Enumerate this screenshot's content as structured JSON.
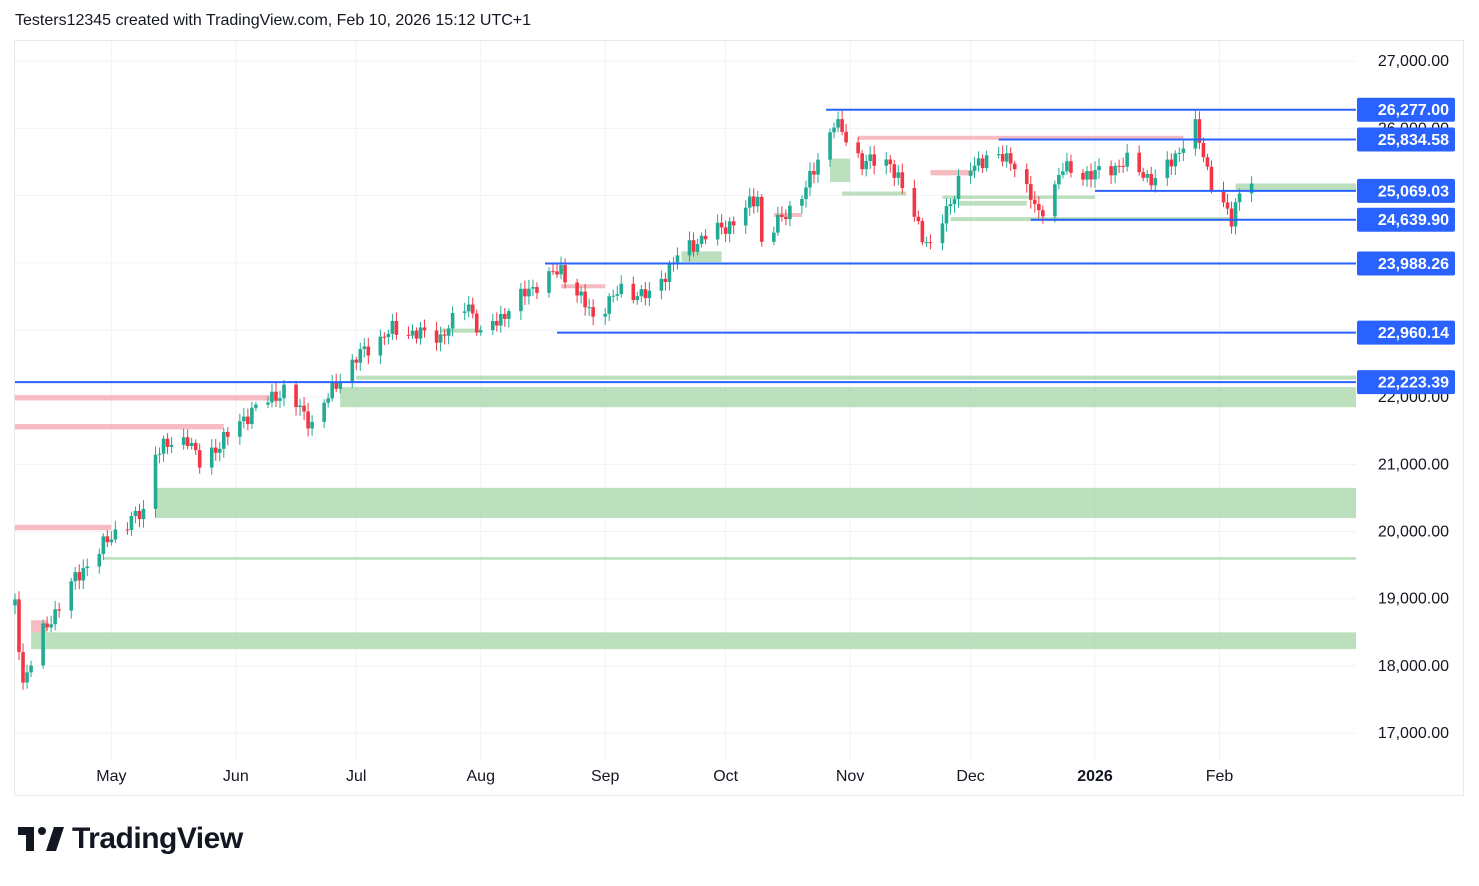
{
  "header": {
    "caption": "Testers12345 created with TradingView.com, Feb 10, 2026 15:12 UTC+1"
  },
  "branding": {
    "logo_text": "TradingView"
  },
  "colors": {
    "up": "#22ab94",
    "down": "#f23645",
    "level_line": "#2962ff",
    "label_bg": "#2962ff",
    "demand_zone": "#a5d6a7",
    "supply_zone": "#f4a6ad",
    "grid": "#f0f3fa",
    "axis_text": "#131722"
  },
  "chart_data": {
    "type": "candlestick",
    "title": "",
    "grid": true,
    "price_axis": {
      "position": "right",
      "range": [
        16600,
        27300
      ],
      "ticks": [
        17000,
        18000,
        19000,
        20000,
        21000,
        22000,
        23000,
        24000,
        25000,
        26000,
        27000
      ],
      "tick_labels": [
        "17,000.00",
        "18,000.00",
        "19,000.00",
        "20,000.00",
        "21,000.00",
        "22,000.00",
        "23,000.00",
        "24,000.00",
        "25,000.00",
        "26,000.00",
        "27,000.00"
      ]
    },
    "time_axis": {
      "start": "2025-04-07",
      "end": "2026-03-07",
      "ticks": [
        {
          "label": "May",
          "date": "2025-05-01",
          "bold": false
        },
        {
          "label": "Jun",
          "date": "2025-06-01",
          "bold": false
        },
        {
          "label": "Jul",
          "date": "2025-07-01",
          "bold": false
        },
        {
          "label": "Aug",
          "date": "2025-08-01",
          "bold": false
        },
        {
          "label": "Sep",
          "date": "2025-09-01",
          "bold": false
        },
        {
          "label": "Oct",
          "date": "2025-10-01",
          "bold": false
        },
        {
          "label": "Nov",
          "date": "2025-11-01",
          "bold": false
        },
        {
          "label": "Dec",
          "date": "2025-12-01",
          "bold": false
        },
        {
          "label": "2026",
          "date": "2026-01-01",
          "bold": true
        },
        {
          "label": "Feb",
          "date": "2026-02-01",
          "bold": false
        }
      ]
    },
    "price_anchors": [
      {
        "date": "2025-04-07",
        "close": 18900
      },
      {
        "date": "2025-04-09",
        "close": 17750
      },
      {
        "date": "2025-04-14",
        "close": 18500
      },
      {
        "date": "2025-04-22",
        "close": 19300
      },
      {
        "date": "2025-05-02",
        "close": 20000
      },
      {
        "date": "2025-05-09",
        "close": 20300
      },
      {
        "date": "2025-05-12",
        "close": 21200
      },
      {
        "date": "2025-05-20",
        "close": 21400
      },
      {
        "date": "2025-05-23",
        "close": 21000
      },
      {
        "date": "2025-06-05",
        "close": 21800
      },
      {
        "date": "2025-06-13",
        "close": 22100
      },
      {
        "date": "2025-06-20",
        "close": 21600
      },
      {
        "date": "2025-06-27",
        "close": 22300
      },
      {
        "date": "2025-07-03",
        "close": 22700
      },
      {
        "date": "2025-07-10",
        "close": 23000
      },
      {
        "date": "2025-07-22",
        "close": 22900
      },
      {
        "date": "2025-07-29",
        "close": 23400
      },
      {
        "date": "2025-08-01",
        "close": 22900
      },
      {
        "date": "2025-08-13",
        "close": 23600
      },
      {
        "date": "2025-08-21",
        "close": 23900
      },
      {
        "date": "2025-08-29",
        "close": 23200
      },
      {
        "date": "2025-09-05",
        "close": 23600
      },
      {
        "date": "2025-09-12",
        "close": 23500
      },
      {
        "date": "2025-09-19",
        "close": 24100
      },
      {
        "date": "2025-09-26",
        "close": 24400
      },
      {
        "date": "2025-10-03",
        "close": 24600
      },
      {
        "date": "2025-10-09",
        "close": 25000
      },
      {
        "date": "2025-10-10",
        "close": 24300
      },
      {
        "date": "2025-10-21",
        "close": 25100
      },
      {
        "date": "2025-10-28",
        "close": 26100
      },
      {
        "date": "2025-11-04",
        "close": 25500
      },
      {
        "date": "2025-11-11",
        "close": 25500
      },
      {
        "date": "2025-11-20",
        "close": 24300
      },
      {
        "date": "2025-11-21",
        "close": 24200
      },
      {
        "date": "2025-11-28",
        "close": 25200
      },
      {
        "date": "2025-12-05",
        "close": 25600
      },
      {
        "date": "2025-12-12",
        "close": 25500
      },
      {
        "date": "2025-12-18",
        "close": 24700
      },
      {
        "date": "2025-12-24",
        "close": 25400
      },
      {
        "date": "2025-12-31",
        "close": 25300
      },
      {
        "date": "2026-01-09",
        "close": 25500
      },
      {
        "date": "2026-01-16",
        "close": 25200
      },
      {
        "date": "2026-01-26",
        "close": 26000
      },
      {
        "date": "2026-01-30",
        "close": 25200
      },
      {
        "date": "2026-02-04",
        "close": 24600
      },
      {
        "date": "2026-02-06",
        "close": 25100
      },
      {
        "date": "2026-02-09",
        "close": 25250
      }
    ],
    "levels": [
      {
        "value": 26277.0,
        "label": "26,277.00",
        "from": "2025-10-26"
      },
      {
        "value": 25834.58,
        "label": "25,834.58",
        "from": "2025-12-08"
      },
      {
        "value": 25069.03,
        "label": "25,069.03",
        "from": "2026-01-01"
      },
      {
        "value": 24639.9,
        "label": "24,639.90",
        "from": "2025-12-16"
      },
      {
        "value": 23988.26,
        "label": "23,988.26",
        "from": "2025-08-17"
      },
      {
        "value": 22960.14,
        "label": "22,960.14",
        "from": "2025-08-20"
      },
      {
        "value": 22223.39,
        "label": "22,223.39",
        "from": "2025-04-07"
      }
    ],
    "zones": [
      {
        "kind": "demand",
        "low": 21850,
        "high": 22150,
        "from": "2025-06-27",
        "to": "end"
      },
      {
        "kind": "demand",
        "low": 22260,
        "high": 22320,
        "from": "2025-07-01",
        "to": "end"
      },
      {
        "kind": "demand",
        "low": 20200,
        "high": 20650,
        "from": "2025-05-12",
        "to": "end"
      },
      {
        "kind": "demand",
        "low": 19580,
        "high": 19620,
        "from": "2025-04-29",
        "to": "end"
      },
      {
        "kind": "demand",
        "low": 18250,
        "high": 18500,
        "from": "2025-04-11",
        "to": "end"
      },
      {
        "kind": "demand",
        "low": 22960,
        "high": 23020,
        "from": "2025-07-22",
        "to": "2025-08-01"
      },
      {
        "kind": "demand",
        "low": 24010,
        "high": 24170,
        "from": "2025-09-20",
        "to": "2025-09-30"
      },
      {
        "kind": "demand",
        "low": 25200,
        "high": 25550,
        "from": "2025-10-27",
        "to": "2025-11-01"
      },
      {
        "kind": "demand",
        "low": 25000,
        "high": 25060,
        "from": "2025-10-30",
        "to": "2025-11-15"
      },
      {
        "kind": "demand",
        "low": 24950,
        "high": 25000,
        "from": "2025-11-24",
        "to": "2026-01-01"
      },
      {
        "kind": "demand",
        "low": 24620,
        "high": 24680,
        "from": "2025-11-26",
        "to": "2026-02-04"
      },
      {
        "kind": "demand",
        "low": 25060,
        "high": 25180,
        "from": "2026-02-05",
        "to": "end"
      },
      {
        "kind": "demand",
        "low": 24850,
        "high": 24920,
        "from": "2025-11-28",
        "to": "2025-12-15"
      },
      {
        "kind": "supply",
        "low": 21950,
        "high": 22030,
        "from": "2025-04-07",
        "to": "2025-06-10"
      },
      {
        "kind": "supply",
        "low": 21520,
        "high": 21600,
        "from": "2025-04-07",
        "to": "2025-05-29"
      },
      {
        "kind": "supply",
        "low": 20020,
        "high": 20100,
        "from": "2025-04-07",
        "to": "2025-05-01"
      },
      {
        "kind": "supply",
        "low": 18500,
        "high": 18680,
        "from": "2025-04-11",
        "to": "2025-04-15"
      },
      {
        "kind": "supply",
        "low": 25830,
        "high": 25890,
        "from": "2025-11-03",
        "to": "2026-01-23"
      },
      {
        "kind": "supply",
        "low": 25300,
        "high": 25380,
        "from": "2025-11-21",
        "to": "2025-12-02"
      },
      {
        "kind": "supply",
        "low": 23620,
        "high": 23680,
        "from": "2025-08-21",
        "to": "2025-09-01"
      },
      {
        "kind": "supply",
        "low": 24680,
        "high": 24740,
        "from": "2025-10-13",
        "to": "2025-10-20"
      }
    ]
  }
}
